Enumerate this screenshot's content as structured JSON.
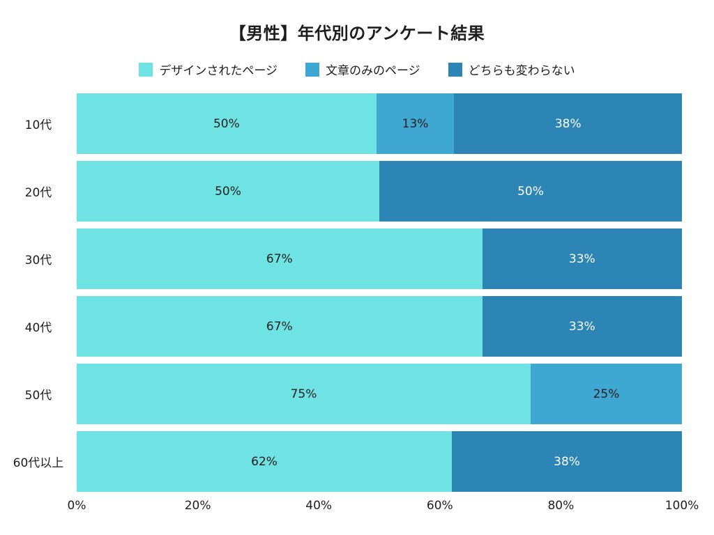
{
  "chart_data": {
    "type": "bar",
    "variant": "horizontal-stacked",
    "title": "【男性】年代別のアンケート結果",
    "xlabel": "",
    "ylabel": "",
    "xlim": [
      0,
      100
    ],
    "grid": false,
    "legend_position": "top-center",
    "x_ticks": [
      "0%",
      "20%",
      "40%",
      "60%",
      "80%",
      "100%"
    ],
    "series": [
      {
        "name": "デザインされたページ",
        "color": "#6FE3E3",
        "label_color": "#1d1d1f"
      },
      {
        "name": "文章のみのページ",
        "color": "#3FA8D2",
        "label_color": "#1d1d1f"
      },
      {
        "name": "どちらも変わらない",
        "color": "#2C85B5",
        "label_color": "#ffffff"
      }
    ],
    "categories": [
      "10代",
      "20代",
      "30代",
      "40代",
      "50代",
      "60代以上"
    ],
    "rows": [
      {
        "category": "10代",
        "segments": [
          {
            "series": 0,
            "value": 50,
            "label": "50%"
          },
          {
            "series": 1,
            "value": 13,
            "label": "13%"
          },
          {
            "series": 2,
            "value": 38,
            "label": "38%"
          }
        ]
      },
      {
        "category": "20代",
        "segments": [
          {
            "series": 0,
            "value": 50,
            "label": "50%"
          },
          {
            "series": 2,
            "value": 50,
            "label": "50%"
          }
        ]
      },
      {
        "category": "30代",
        "segments": [
          {
            "series": 0,
            "value": 67,
            "label": "67%"
          },
          {
            "series": 2,
            "value": 33,
            "label": "33%"
          }
        ]
      },
      {
        "category": "40代",
        "segments": [
          {
            "series": 0,
            "value": 67,
            "label": "67%"
          },
          {
            "series": 2,
            "value": 33,
            "label": "33%"
          }
        ]
      },
      {
        "category": "50代",
        "segments": [
          {
            "series": 0,
            "value": 75,
            "label": "75%"
          },
          {
            "series": 1,
            "value": 25,
            "label": "25%"
          }
        ]
      },
      {
        "category": "60代以上",
        "segments": [
          {
            "series": 0,
            "value": 62,
            "label": "62%"
          },
          {
            "series": 2,
            "value": 38,
            "label": "38%"
          }
        ]
      }
    ]
  }
}
